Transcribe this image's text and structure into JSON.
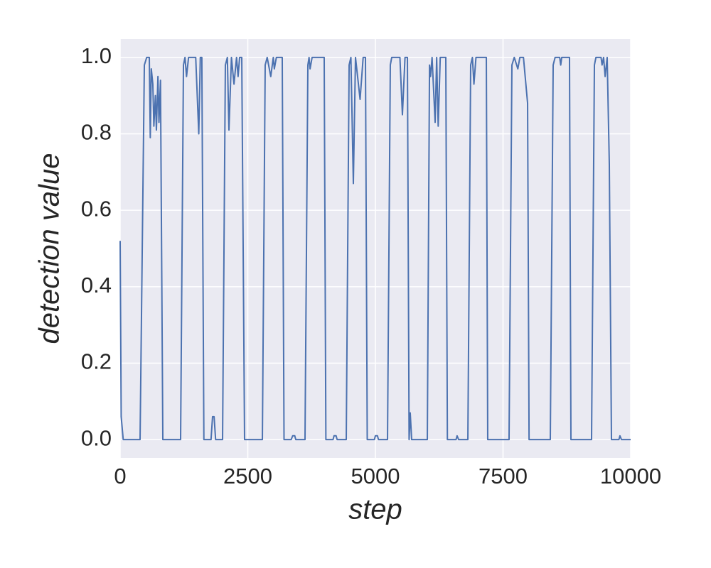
{
  "chart_data": {
    "type": "line",
    "xlabel": "step",
    "ylabel": "detection value",
    "x": [
      0,
      20,
      60,
      390,
      474,
      520,
      571,
      590,
      610,
      640,
      660,
      690,
      710,
      740,
      760,
      790,
      836,
      1184,
      1240,
      1270,
      1300,
      1340,
      1480,
      1540,
      1570,
      1600,
      1640,
      1780,
      1810,
      1840,
      1870,
      2006,
      2061,
      2100,
      2131,
      2180,
      2230,
      2280,
      2310,
      2340,
      2382,
      2437,
      2786,
      2841,
      2880,
      2950,
      3000,
      3020,
      3060,
      3175,
      3210,
      3350,
      3380,
      3420,
      3440,
      3621,
      3677,
      3700,
      3720,
      3760,
      3997,
      4030,
      4170,
      4190,
      4230,
      4250,
      4429,
      4485,
      4520,
      4568,
      4610,
      4700,
      4760,
      4805,
      4840,
      4980,
      5000,
      5040,
      5060,
      5237,
      5292,
      5320,
      5480,
      5529,
      5580,
      5627,
      5660,
      5682,
      5710,
      6017,
      6060,
      6080,
      6110,
      6170,
      6200,
      6230,
      6270,
      6379,
      6410,
      6580,
      6600,
      6630,
      6811,
      6866,
      6900,
      6930,
      6970,
      7173,
      7200,
      7618,
      7674,
      7720,
      7790,
      7830,
      7900,
      7981,
      8010,
      8426,
      8482,
      8520,
      8610,
      8630,
      8650,
      8802,
      8830,
      9234,
      9290,
      9320,
      9420,
      9440,
      9470,
      9500,
      9540,
      9582,
      9624,
      9770,
      9790,
      9820,
      10000
    ],
    "values": [
      0.52,
      0.06,
      0,
      0,
      0.98,
      1.0,
      1.0,
      0.79,
      0.97,
      0.93,
      0.82,
      0.9,
      0.81,
      0.95,
      0.83,
      0.94,
      0,
      0,
      0.98,
      1.0,
      0.95,
      1.0,
      1.0,
      0.8,
      1.0,
      1.0,
      0,
      0,
      0.06,
      0.06,
      0,
      0,
      0.98,
      1.0,
      0.81,
      1.0,
      0.93,
      1.0,
      0.95,
      1.0,
      1.0,
      0,
      0,
      0.98,
      1.0,
      0.95,
      1.0,
      0.97,
      1.0,
      1.0,
      0,
      0,
      0.01,
      0.01,
      0,
      0,
      0.98,
      1.0,
      0.97,
      1.0,
      1.0,
      0,
      0,
      0.01,
      0.01,
      0,
      0,
      0.98,
      1.0,
      0.67,
      1.0,
      0.89,
      1.0,
      1.0,
      0,
      0,
      0.01,
      0.01,
      0,
      0,
      0.98,
      1.0,
      1.0,
      0.85,
      1.0,
      1.0,
      0,
      0.07,
      0,
      0,
      0.98,
      0.95,
      1.0,
      0.83,
      1.0,
      0.82,
      1.0,
      1.0,
      0,
      0,
      0.01,
      0,
      0,
      0.98,
      1.0,
      0.93,
      1.0,
      1.0,
      0,
      0,
      0.98,
      1.0,
      0.97,
      1.0,
      1.0,
      0.88,
      0,
      0,
      0.98,
      1.0,
      1.0,
      0.98,
      1.0,
      1.0,
      0,
      0,
      0.98,
      1.0,
      1.0,
      0.98,
      1.0,
      0.95,
      1.0,
      0.72,
      0,
      0,
      0.01,
      0,
      0
    ],
    "color": "#4c72b0",
    "xlim": [
      0,
      10000
    ],
    "xticks": [
      0,
      2500,
      5000,
      7500,
      10000
    ],
    "ylim": [
      -0.048,
      1.048
    ],
    "yticks": [
      {
        "value": 0,
        "label": "0.0"
      },
      {
        "value": 0.2,
        "label": "0.2"
      },
      {
        "value": 0.4,
        "label": "0.4"
      },
      {
        "value": 0.6,
        "label": "0.6"
      },
      {
        "value": 0.8,
        "label": "0.8"
      },
      {
        "value": 1.0,
        "label": "1.0"
      }
    ],
    "grid": true
  }
}
